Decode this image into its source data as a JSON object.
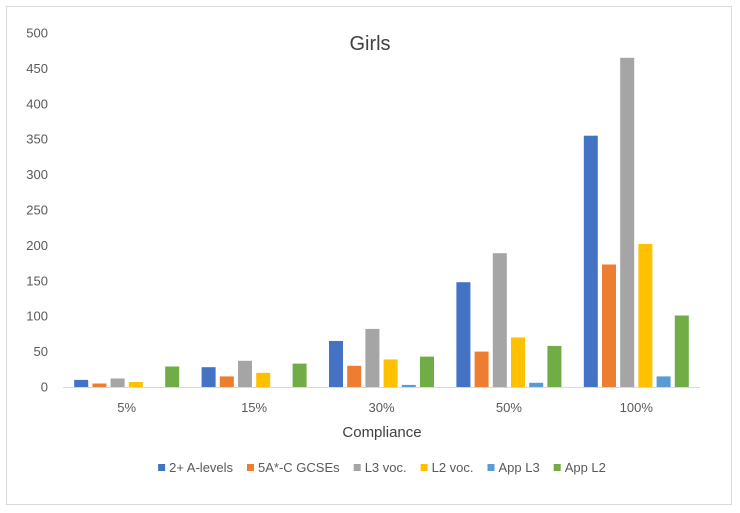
{
  "chart_data": {
    "type": "bar",
    "title": "Girls",
    "xlabel": "Compliance",
    "ylabel": "",
    "categories": [
      "5%",
      "15%",
      "30%",
      "50%",
      "100%"
    ],
    "ylim": [
      0,
      500
    ],
    "yticks": [
      0,
      50,
      100,
      150,
      200,
      250,
      300,
      350,
      400,
      450,
      500
    ],
    "grid": false,
    "legend_position": "bottom",
    "series": [
      {
        "name": "2+ A-levels",
        "color": "#4472C4",
        "values": [
          10,
          28,
          65,
          148,
          355
        ]
      },
      {
        "name": "5A*-C GCSEs",
        "color": "#ED7D31",
        "values": [
          5,
          15,
          30,
          50,
          173
        ]
      },
      {
        "name": "L3 voc.",
        "color": "#A5A5A5",
        "values": [
          12,
          37,
          82,
          189,
          465
        ]
      },
      {
        "name": "L2 voc.",
        "color": "#FFC000",
        "values": [
          7,
          20,
          39,
          70,
          202
        ]
      },
      {
        "name": "App L3",
        "color": "#5B9BD5",
        "values": [
          0,
          0,
          3,
          6,
          15
        ]
      },
      {
        "name": "App L2",
        "color": "#70AD47",
        "values": [
          29,
          33,
          43,
          58,
          101
        ]
      }
    ]
  }
}
